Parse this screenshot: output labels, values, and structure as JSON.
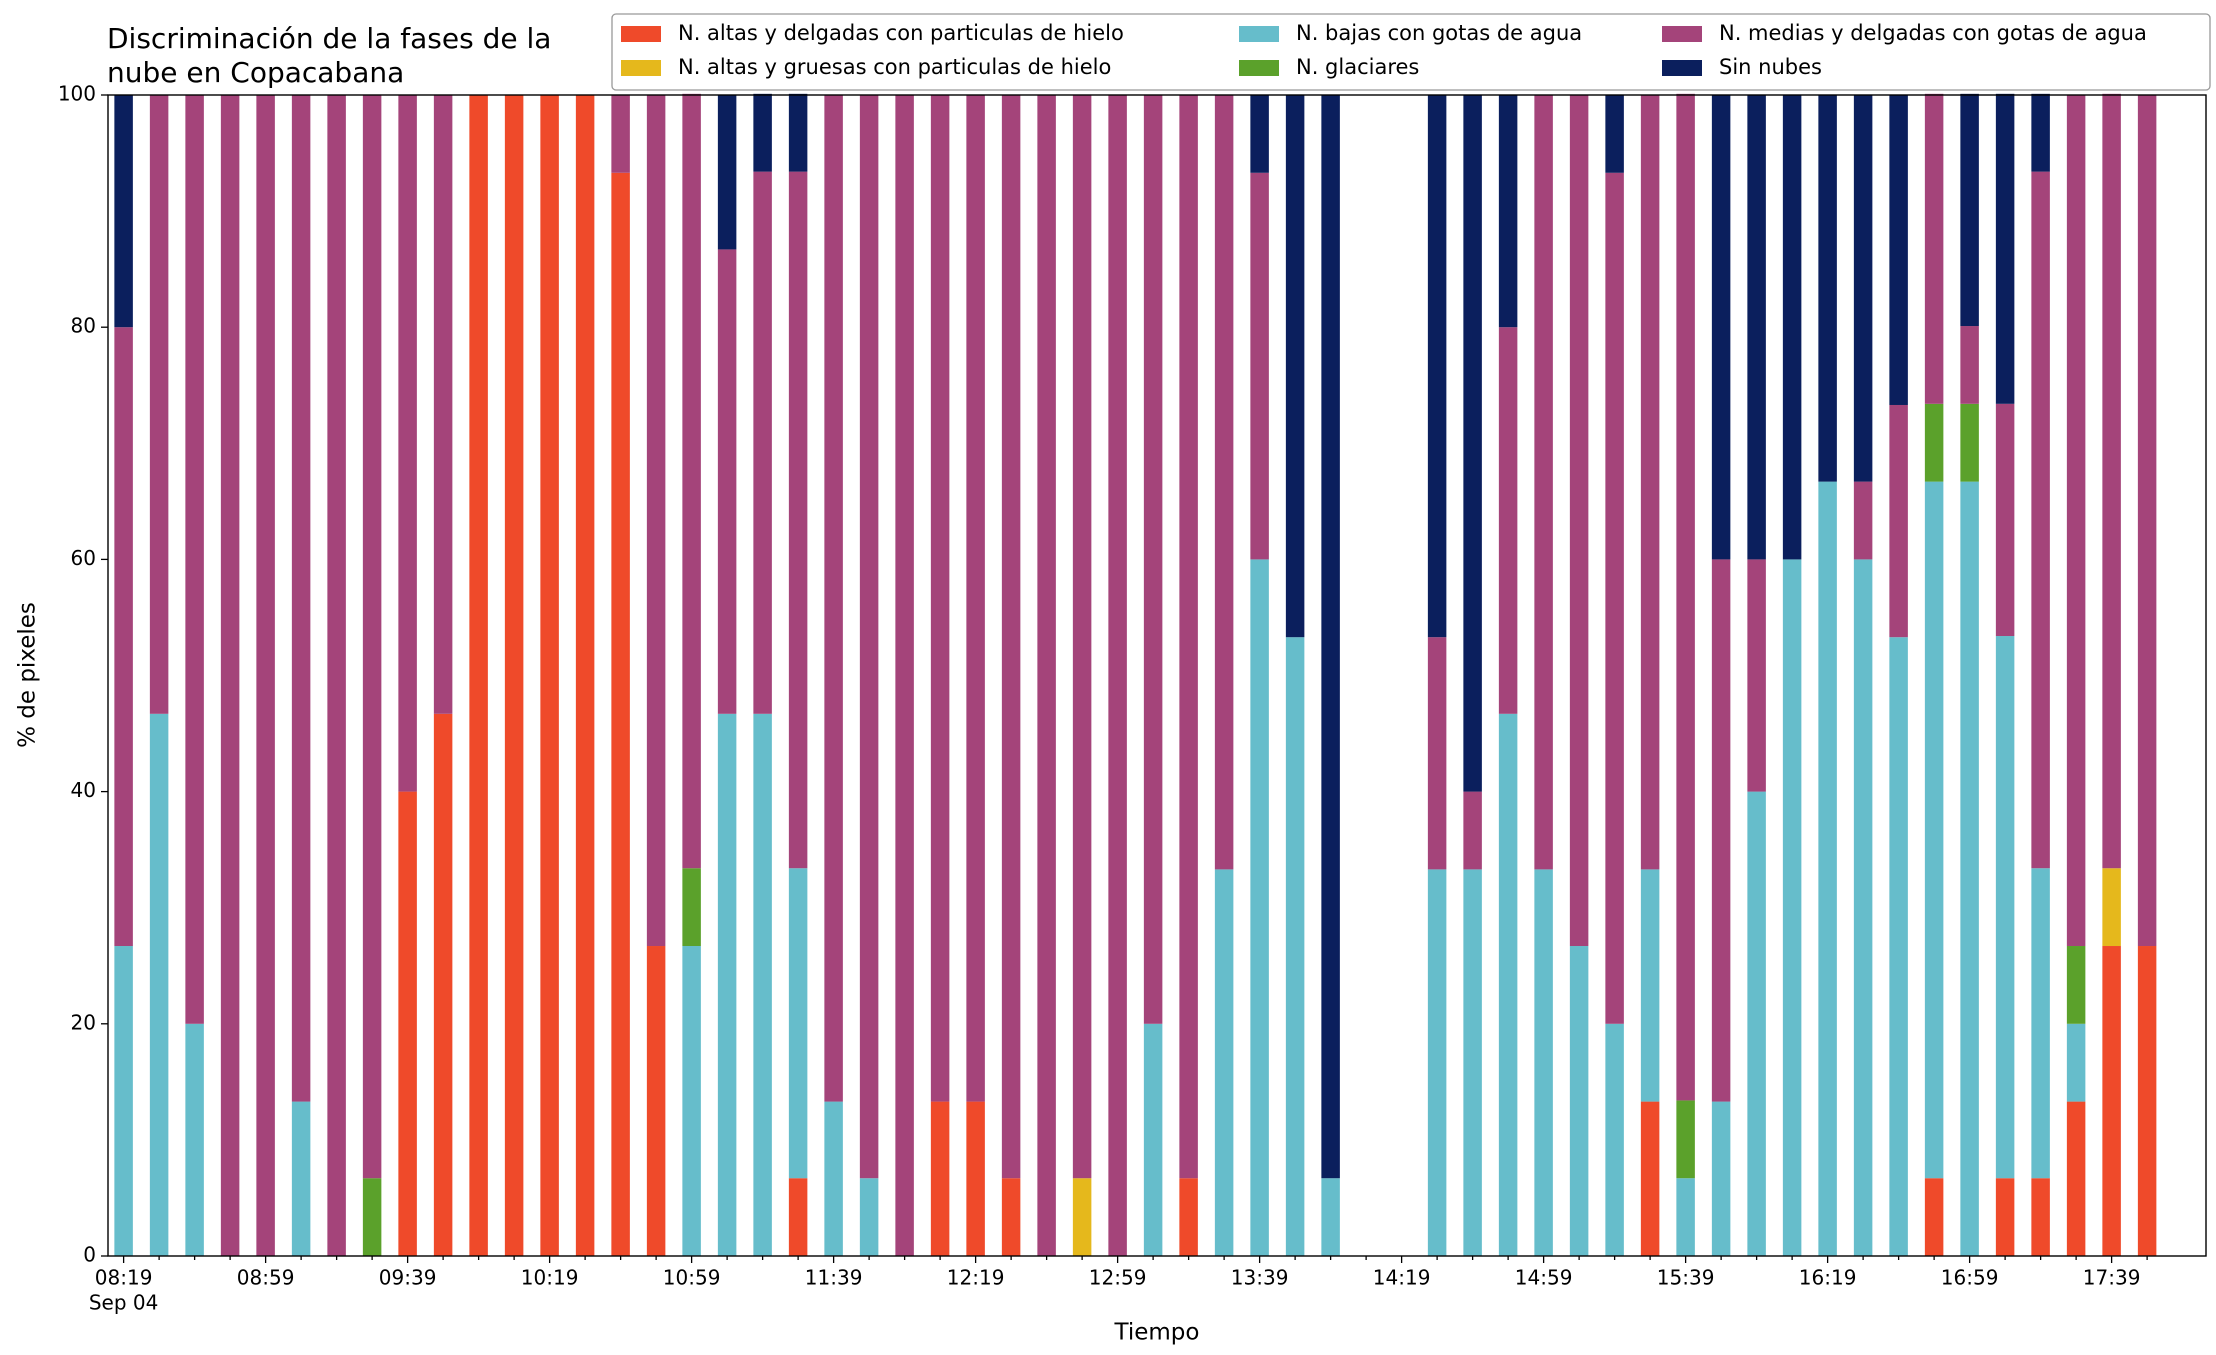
{
  "chart_data": {
    "type": "stacked_bar",
    "title": [
      "Discriminación de la fases de la",
      "nube en Copacabana"
    ],
    "x_label": "Tiempo",
    "y_label": "% de pixeles",
    "x_date_label": "Sep 04",
    "categories": [
      "08:19",
      null,
      null,
      null,
      "08:59",
      null,
      null,
      null,
      "09:39",
      null,
      null,
      null,
      "10:19",
      null,
      null,
      null,
      "10:59",
      null,
      null,
      null,
      "11:39",
      null,
      null,
      null,
      "12:19",
      null,
      null,
      null,
      "12:59",
      null,
      null,
      null,
      "13:39",
      null,
      null,
      null,
      "14:19",
      null,
      null,
      null,
      "14:59",
      null,
      null,
      null,
      "15:39",
      null,
      null,
      null,
      "16:19",
      null,
      null,
      null,
      "16:59",
      null,
      null,
      null,
      "17:39",
      null
    ],
    "ylim": [
      0,
      100
    ],
    "yticks": [
      0,
      20,
      40,
      60,
      80,
      100
    ],
    "legend": "top-right",
    "series": [
      {
        "name": "N. altas y delgadas con particulas de hielo",
        "color": "#ef4a2a",
        "values": [
          0,
          0,
          0,
          0,
          0,
          0,
          0,
          0,
          40,
          46.7,
          100,
          100,
          100,
          100,
          93.3,
          26.7,
          0,
          0,
          0,
          6.7,
          0,
          0,
          0,
          13.3,
          13.3,
          6.7,
          0,
          0,
          0,
          0,
          6.7,
          0,
          0,
          0,
          0,
          0,
          0,
          0,
          0,
          0,
          0,
          0,
          0,
          13.3,
          0,
          0,
          0,
          0,
          0,
          0,
          0,
          6.7,
          0,
          6.7,
          6.7,
          13.3,
          26.7,
          26.7
        ]
      },
      {
        "name": "N. altas y gruesas con particulas de hielo",
        "color": "#e5b81c",
        "values": [
          0,
          0,
          0,
          0,
          0,
          0,
          0,
          0,
          0,
          0,
          0,
          0,
          0,
          0,
          0,
          0,
          0,
          0,
          0,
          0,
          0,
          0,
          0,
          0,
          0,
          0,
          0,
          6.7,
          0,
          0,
          0,
          0,
          0,
          0,
          0,
          0,
          0,
          0,
          0,
          0,
          0,
          0,
          0,
          0,
          0,
          0,
          0,
          0,
          0,
          0,
          0,
          0,
          0,
          0,
          0,
          0,
          6.7,
          0
        ]
      },
      {
        "name": "N. bajas con gotas de agua",
        "color": "#66bdcb",
        "values": [
          26.7,
          46.7,
          20,
          0,
          0,
          13.3,
          0,
          0,
          0,
          0,
          0,
          0,
          0,
          0,
          0,
          0,
          26.7,
          46.7,
          46.7,
          26.7,
          13.3,
          6.7,
          0,
          0,
          0,
          0,
          0,
          0,
          0,
          20,
          0,
          33.3,
          60,
          53.3,
          6.7,
          0,
          0,
          33.3,
          33.3,
          46.7,
          33.3,
          26.7,
          20,
          20,
          6.7,
          13.3,
          40,
          60,
          66.7,
          60,
          53.3,
          60,
          66.7,
          46.7,
          26.7,
          6.7,
          0,
          0
        ]
      },
      {
        "name": "N. glaciares",
        "color": "#5ba12b",
        "values": [
          0,
          0,
          0,
          0,
          0,
          0,
          0,
          6.7,
          0,
          0,
          0,
          0,
          0,
          0,
          0,
          0,
          6.7,
          0,
          0,
          0,
          0,
          0,
          0,
          0,
          0,
          0,
          0,
          0,
          0,
          0,
          0,
          0,
          0,
          0,
          0,
          0,
          0,
          0,
          0,
          0,
          0,
          0,
          0,
          0,
          6.7,
          0,
          0,
          0,
          0,
          0,
          0,
          6.7,
          6.7,
          0,
          0,
          6.7,
          0,
          0
        ]
      },
      {
        "name": "N. medias y delgadas con gotas de agua",
        "color": "#a4447a",
        "values": [
          53.3,
          53.3,
          80,
          100,
          100,
          86.7,
          100,
          93.3,
          60,
          53.3,
          0,
          0,
          0,
          0,
          6.7,
          73.3,
          66.7,
          40,
          46.7,
          60,
          86.7,
          93.3,
          100,
          86.7,
          86.7,
          93.3,
          100,
          93.3,
          100,
          80,
          93.3,
          66.7,
          33.3,
          0,
          0,
          0,
          0,
          20,
          6.7,
          33.3,
          66.7,
          73.3,
          73.3,
          66.7,
          86.7,
          46.7,
          20,
          0,
          0,
          6.7,
          20,
          26.7,
          6.7,
          20,
          60,
          73.3,
          66.7,
          73.3
        ]
      },
      {
        "name": "Sin nubes",
        "color": "#0b1f5d",
        "values": [
          20,
          0,
          0,
          0,
          0,
          0,
          0,
          0,
          0,
          0,
          0,
          0,
          0,
          0,
          0,
          0,
          0,
          13.3,
          6.7,
          6.7,
          0,
          0,
          0,
          0,
          0,
          0,
          0,
          0,
          0,
          0,
          0,
          0,
          6.7,
          46.7,
          93.3,
          0,
          0,
          46.7,
          60,
          20,
          0,
          0,
          6.7,
          0,
          0,
          40,
          40,
          40,
          33.3,
          33.3,
          26.7,
          0,
          20,
          26.7,
          6.7,
          0,
          0,
          0
        ]
      }
    ]
  }
}
